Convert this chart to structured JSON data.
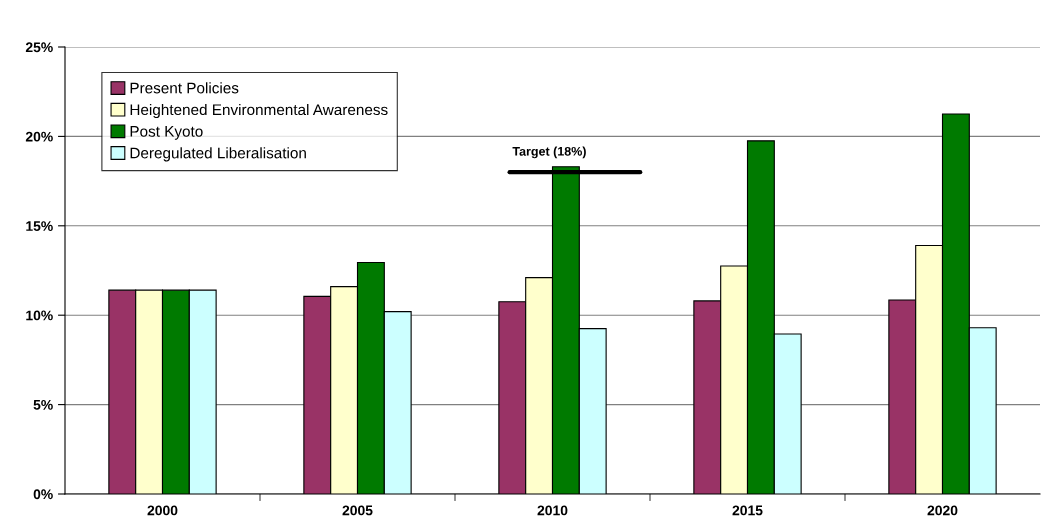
{
  "chart_data": {
    "type": "bar",
    "categories": [
      "2000",
      "2005",
      "2010",
      "2015",
      "2020"
    ],
    "series": [
      {
        "name": "Present Policies",
        "color": "#993366",
        "values": [
          11.4,
          11.05,
          10.75,
          10.8,
          10.85
        ]
      },
      {
        "name": "Heightened Environmental Awareness",
        "color": "#ffffcc",
        "values": [
          11.4,
          11.6,
          12.1,
          12.75,
          13.9
        ]
      },
      {
        "name": "Post Kyoto",
        "color": "#007a00",
        "values": [
          11.4,
          12.95,
          18.3,
          19.75,
          21.25
        ]
      },
      {
        "name": "Deregulated Liberalisation",
        "color": "#ccffff",
        "values": [
          11.4,
          10.2,
          9.25,
          8.95,
          9.3
        ]
      }
    ],
    "ylim": [
      0,
      25
    ],
    "yticks": [
      {
        "value": 0,
        "label": "0%"
      },
      {
        "value": 5,
        "label": "5%"
      },
      {
        "value": 10,
        "label": "10%"
      },
      {
        "value": 15,
        "label": "15%"
      },
      {
        "value": 20,
        "label": "20%"
      },
      {
        "value": 25,
        "label": "25%"
      }
    ],
    "ref_lines": [
      {
        "axis": "y",
        "value": 18,
        "label": "Target (18%)",
        "color": "#000000",
        "line_style": "solid"
      }
    ],
    "grid": "y",
    "legend": "top left"
  }
}
